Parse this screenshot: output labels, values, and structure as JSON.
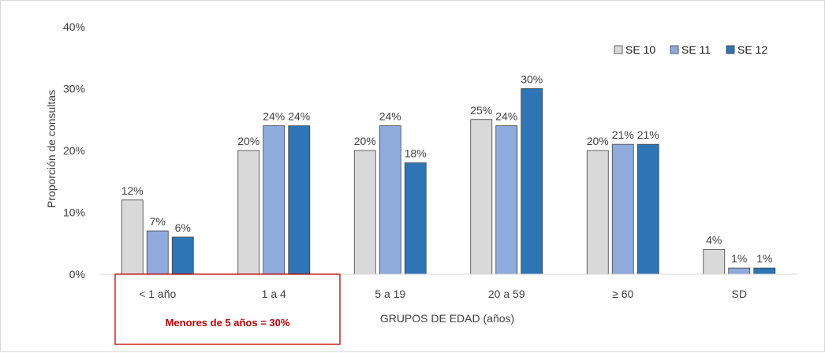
{
  "chart_data": {
    "type": "bar",
    "title": "",
    "xlabel": "GRUPOS DE EDAD (años)",
    "ylabel": "Proporción de consultas",
    "ylim": [
      0,
      40
    ],
    "yticks": [
      "0%",
      "10%",
      "20%",
      "30%",
      "40%"
    ],
    "grid": false,
    "legend_position": "top-right",
    "categories": [
      "< 1 año",
      "1 a 4",
      "5 a 19",
      "20 a 59",
      "≥ 60",
      "SD"
    ],
    "series": [
      {
        "name": "SE 10",
        "color": "#d9d9d9",
        "values": [
          12,
          20,
          20,
          25,
          20,
          4
        ],
        "labels": [
          "12%",
          "20%",
          "20%",
          "25%",
          "20%",
          "4%"
        ]
      },
      {
        "name": "SE 11",
        "color": "#8faadc",
        "values": [
          7,
          24,
          24,
          24,
          21,
          1
        ],
        "labels": [
          "7%",
          "24%",
          "24%",
          "24%",
          "21%",
          "1%"
        ]
      },
      {
        "name": "SE 12",
        "color": "#2e75b6",
        "values": [
          6,
          24,
          18,
          30,
          21,
          1
        ],
        "labels": [
          "6%",
          "24%",
          "18%",
          "30%",
          "21%",
          "1%"
        ]
      }
    ],
    "annotation": {
      "text": "Menores de 5 años = 30%",
      "color": "#c00000",
      "categories_spanned": [
        "< 1 año",
        "1 a 4"
      ]
    }
  }
}
